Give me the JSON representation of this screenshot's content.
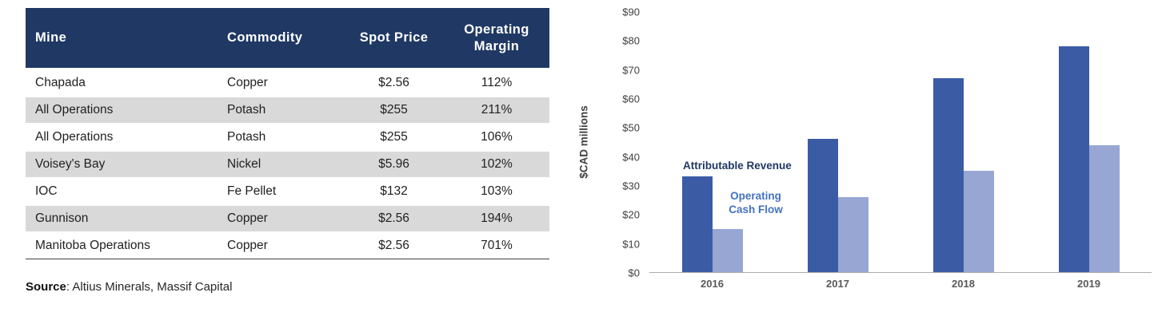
{
  "colors": {
    "header_bg": "#1F3864",
    "header_text": "#FFFFFF",
    "stripe": "#D9D9D9",
    "axis_line": "#ADADAD",
    "text_dark": "#1A1A1A"
  },
  "table": {
    "headers": [
      "Mine",
      "Commodity",
      "Spot Price",
      "Operating Margin"
    ],
    "rows": [
      [
        "Chapada",
        "Copper",
        "$2.56",
        "112%"
      ],
      [
        "All Operations",
        "Potash",
        "$255",
        "211%"
      ],
      [
        "All Operations",
        "Potash",
        "$255",
        "106%"
      ],
      [
        "Voisey's Bay",
        "Nickel",
        "$5.96",
        "102%"
      ],
      [
        "IOC",
        "Fe Pellet",
        "$132",
        "103%"
      ],
      [
        "Gunnison",
        "Copper",
        "$2.56",
        "194%"
      ],
      [
        "Manitoba Operations",
        "Copper",
        "$2.56",
        "701%"
      ]
    ],
    "source_label": "Source",
    "source_text": ": Altius Minerals, Massif Capital"
  },
  "chart_data": {
    "type": "bar",
    "categories": [
      "2016",
      "2017",
      "2018",
      "2019"
    ],
    "series": [
      {
        "name": "Attributable Revenue",
        "color": "#3B5BA5",
        "values": [
          33,
          46,
          67,
          78
        ]
      },
      {
        "name": "Operating Cash Flow",
        "color": "#98A6D4",
        "values": [
          15,
          26,
          35,
          44
        ]
      }
    ],
    "title": "",
    "xlabel": "",
    "ylabel": "$CAD millions",
    "ylim": [
      0,
      90
    ],
    "ytick_step": 10,
    "yticks": [
      "$0",
      "$10",
      "$20",
      "$30",
      "$40",
      "$50",
      "$60",
      "$70",
      "$80",
      "$90"
    ],
    "grid": "off",
    "legend_position": "in-plot-annotations",
    "annotations": [
      {
        "text": "Attributable Revenue",
        "color": "#1F3864"
      },
      {
        "text": "Operating Cash Flow",
        "color": "#4472C4"
      }
    ]
  }
}
